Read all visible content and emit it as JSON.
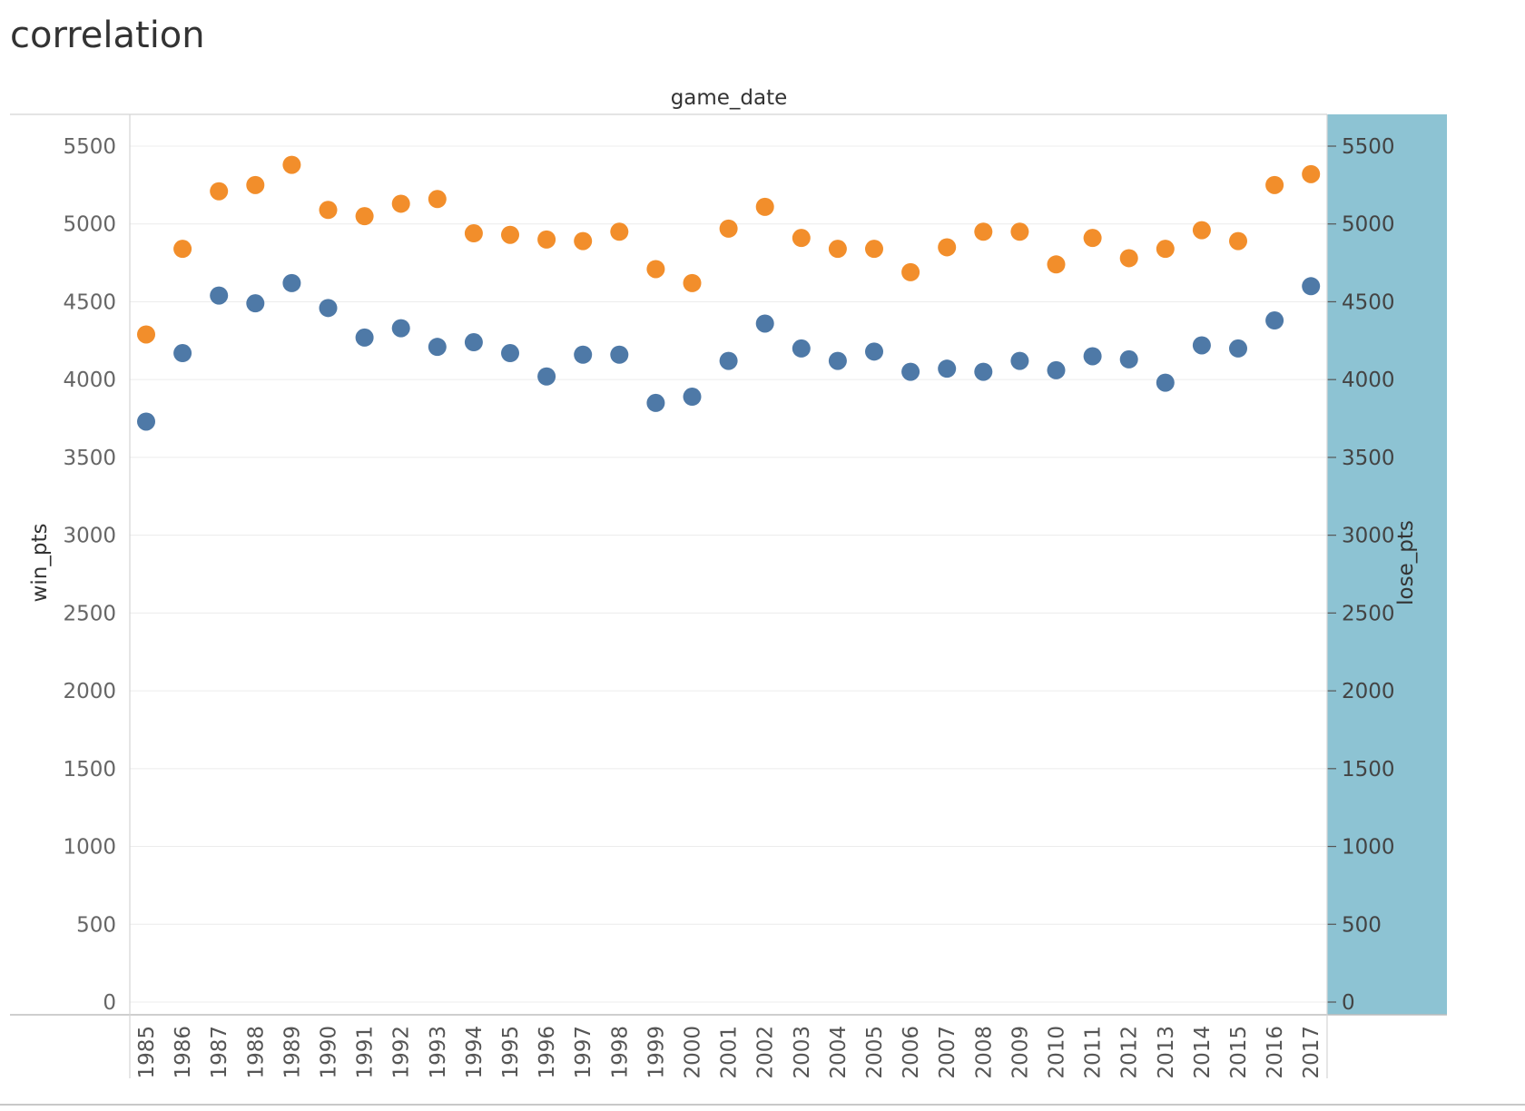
{
  "sheet": {
    "title": "correlation"
  },
  "chart_data": {
    "type": "scatter",
    "title": "",
    "column_header": "game_date",
    "ylabel_left": "win_pts",
    "ylabel_right": "lose_pts",
    "x": [
      "1985",
      "1986",
      "1987",
      "1988",
      "1989",
      "1990",
      "1991",
      "1992",
      "1993",
      "1994",
      "1995",
      "1996",
      "1997",
      "1998",
      "1999",
      "2000",
      "2001",
      "2002",
      "2003",
      "2004",
      "2005",
      "2006",
      "2007",
      "2008",
      "2009",
      "2010",
      "2011",
      "2012",
      "2013",
      "2014",
      "2015",
      "2016",
      "2017"
    ],
    "ylim": [
      0,
      5500
    ],
    "yticks": [
      "0",
      "500",
      "1000",
      "1500",
      "2000",
      "2500",
      "3000",
      "3500",
      "4000",
      "4500",
      "5000",
      "5500"
    ],
    "grid": true,
    "right_axis_highlight_color": "#8dc3d3",
    "series": [
      {
        "axis": "left",
        "color": "#f28e2b",
        "values": [
          4290,
          4840,
          5210,
          5250,
          5380,
          5090,
          5050,
          5130,
          5160,
          4940,
          4930,
          4900,
          4890,
          4950,
          4710,
          4620,
          4970,
          5110,
          4910,
          4840,
          4840,
          4690,
          4850,
          4950,
          4950,
          4740,
          4910,
          4780,
          4840,
          4960,
          4890,
          5250,
          5320
        ]
      },
      {
        "axis": "right",
        "color": "#4e79a7",
        "values": [
          3730,
          4170,
          4540,
          4490,
          4620,
          4460,
          4270,
          4330,
          4210,
          4240,
          4170,
          4020,
          4160,
          4160,
          3850,
          3890,
          4120,
          4360,
          4200,
          4120,
          4180,
          4050,
          4070,
          4050,
          4120,
          4060,
          4150,
          4130,
          3980,
          4220,
          4200,
          4380,
          4600
        ]
      }
    ]
  }
}
